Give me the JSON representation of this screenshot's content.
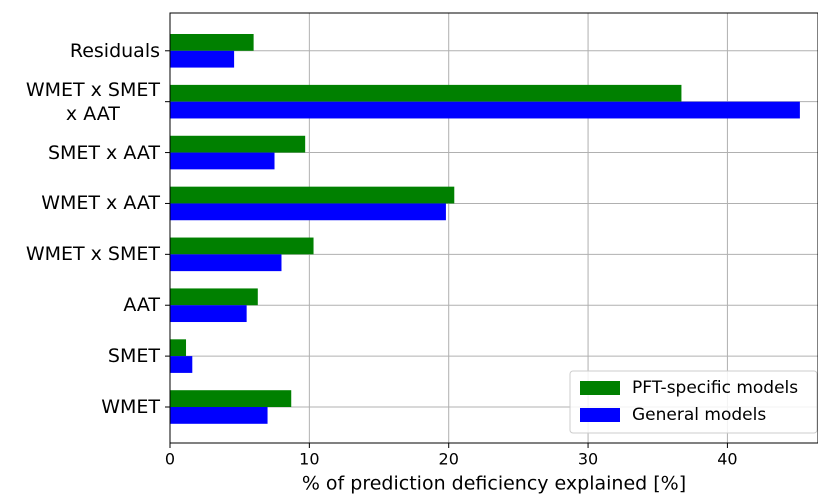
{
  "chart_data": {
    "type": "hbar",
    "xlabel": "% of prediction deficiency explained [%]",
    "categories": [
      "WMET",
      "SMET",
      "AAT",
      "WMET x SMET",
      "WMET x AAT",
      "SMET x AAT",
      "WMET x SMET\nx AAT",
      "Residuals"
    ],
    "series": [
      {
        "name": "PFT-specific models",
        "color": "#008000",
        "values": [
          8.7,
          1.15,
          6.3,
          10.3,
          20.4,
          9.7,
          36.7,
          6.0
        ]
      },
      {
        "name": "General models",
        "color": "#0000ff",
        "values": [
          7.0,
          1.6,
          5.5,
          8.0,
          19.8,
          7.5,
          45.2,
          4.6
        ]
      }
    ],
    "xlim": [
      0,
      46.5
    ],
    "xticks": [
      0,
      10,
      20,
      30,
      40
    ],
    "grid": true,
    "legend": "lower right"
  }
}
